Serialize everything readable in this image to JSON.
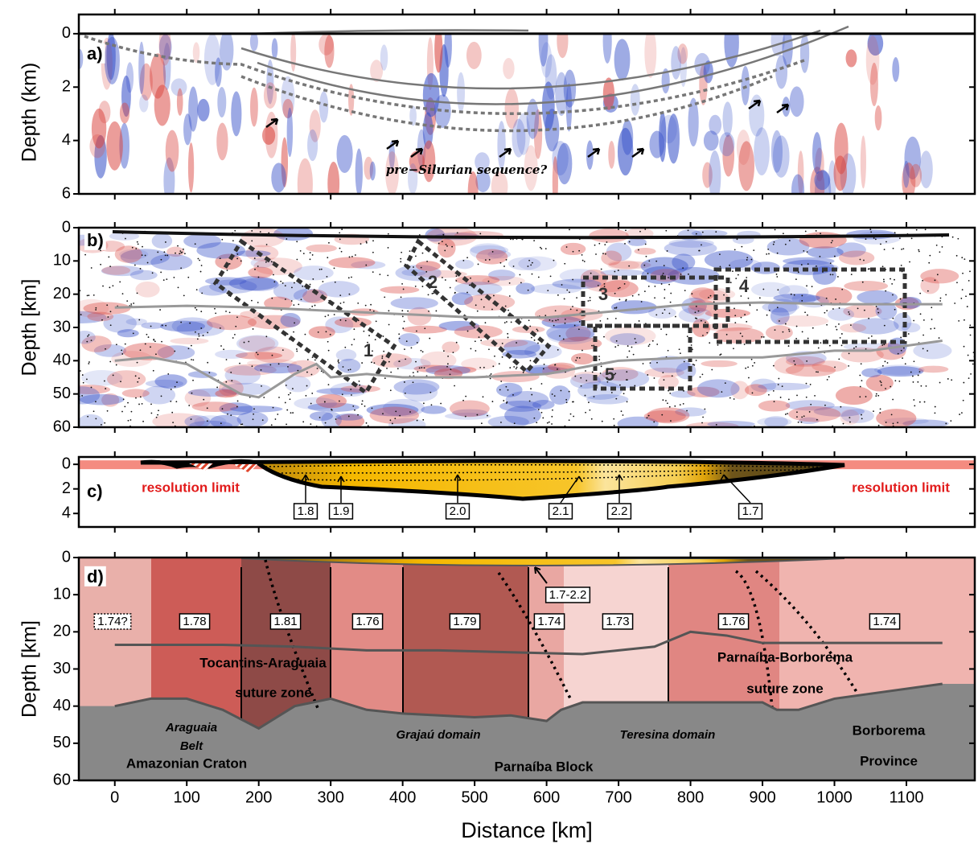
{
  "chart_data": [
    {
      "type": "section",
      "label": "a)",
      "ylabel": "Depth (km)",
      "ylim": [
        -0.72,
        6
      ],
      "yticks": [
        0,
        2,
        4,
        6
      ],
      "annotations": [
        "pre−Silurian sequence?"
      ]
    },
    {
      "type": "section",
      "label": "b)",
      "ylabel": "Depth [km]",
      "ylim": [
        0,
        60
      ],
      "yticks": [
        0,
        10,
        20,
        30,
        40,
        50,
        60
      ],
      "box_labels": [
        "1",
        "2",
        "3",
        "4",
        "5"
      ],
      "lines": [
        {
          "color": "#999999",
          "x": [
            0,
            100,
            200,
            300,
            400,
            500,
            600,
            700,
            800,
            900,
            1000,
            1150
          ],
          "values": [
            24,
            23.5,
            24,
            25,
            26,
            27,
            27,
            25,
            23,
            22.5,
            23,
            23
          ]
        },
        {
          "color": "#999999",
          "x": [
            0,
            50,
            100,
            150,
            175,
            200,
            250,
            280,
            300,
            350,
            400,
            500,
            600,
            700,
            800,
            900,
            1000,
            1050,
            1150
          ],
          "values": [
            40,
            39,
            41,
            47,
            50,
            51,
            44,
            41,
            45,
            44,
            45,
            45,
            44,
            40,
            39,
            39,
            37,
            37,
            34
          ]
        }
      ]
    },
    {
      "type": "section",
      "label": "c)",
      "ylim": [
        -0.6,
        5.1
      ],
      "yticks": [
        0,
        2,
        4
      ],
      "annotations": [
        "resolution limit",
        "resolution limit"
      ],
      "unit_labels": [
        "1.8",
        "1.9",
        "2.0",
        "2.1",
        "2.2",
        "1.7"
      ]
    },
    {
      "type": "section",
      "label": "d)",
      "ylabel": "Depth [km]",
      "ylim": [
        0,
        60
      ],
      "yticks": [
        0,
        10,
        20,
        30,
        40,
        50,
        60
      ],
      "xlim": [
        -50,
        1195
      ],
      "xticks": [
        0,
        100,
        200,
        300,
        400,
        500,
        600,
        700,
        800,
        900,
        1000,
        1100
      ],
      "xlabel": "Distance [km]",
      "blocks": [
        {
          "label": "1.74?",
          "color": "#e9b0aa"
        },
        {
          "label": "1.78",
          "color": "#cd5c57"
        },
        {
          "label": "1.81",
          "color": "#8e4a47"
        },
        {
          "label": "1.76",
          "color": "#e28b86"
        },
        {
          "label": "1.79",
          "color": "#b15952"
        },
        {
          "label": "1.74",
          "color": "#e9a7a2"
        },
        {
          "label": "1.73",
          "color": "#f6d4d1"
        },
        {
          "label": "1.76",
          "color": "#e08682"
        },
        {
          "label": "1.74",
          "color": "#f0b4af"
        }
      ],
      "annotations": [
        "1.7-2.2",
        "Tocantins-Araguaia",
        "suture zone",
        "Parnaíba-Borborema",
        "suture zone",
        "Araguaia",
        "Belt",
        "Grajaú domain",
        "Teresina domain",
        "Borborema",
        "Province",
        "Amazonian Craton",
        "Parnaíba Block"
      ],
      "lines": [
        {
          "color": "#555555",
          "x": [
            0,
            50,
            150,
            250,
            350,
            450,
            550,
            650,
            700,
            750,
            800,
            850,
            900,
            1000,
            1150
          ],
          "values": [
            23.5,
            23.5,
            23.5,
            24,
            25,
            25,
            25.5,
            26,
            25,
            24,
            20,
            21,
            23,
            23,
            23
          ]
        },
        {
          "color": "#555555",
          "x": [
            0,
            50,
            100,
            150,
            200,
            250,
            300,
            350,
            400,
            500,
            550,
            600,
            620,
            650,
            700,
            800,
            900,
            920,
            950,
            1000,
            1150
          ],
          "values": [
            40,
            38,
            38,
            41,
            46,
            40,
            38,
            41,
            42,
            43,
            42.5,
            44,
            41,
            39,
            39,
            39,
            39,
            41,
            41,
            38,
            34
          ]
        }
      ]
    }
  ]
}
